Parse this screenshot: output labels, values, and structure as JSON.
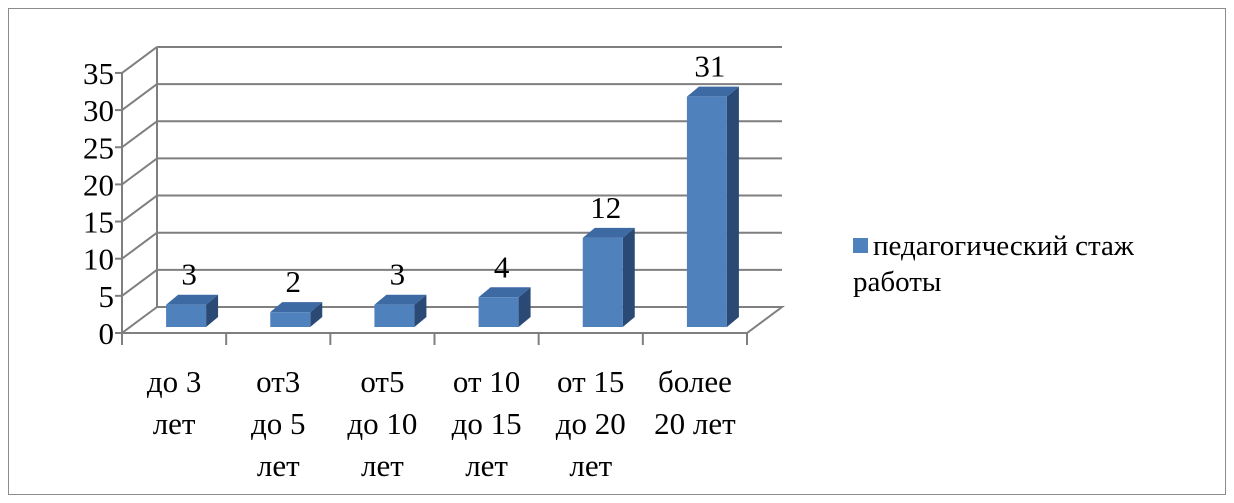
{
  "chart_data": {
    "type": "bar",
    "categories": [
      [
        "до 3",
        "лет"
      ],
      [
        "от3",
        "до 5",
        "лет"
      ],
      [
        "от5",
        "до 10",
        "лет"
      ],
      [
        "от 10",
        "до 15",
        "лет"
      ],
      [
        "от 15",
        "до 20",
        "лет"
      ],
      [
        "более",
        "20 лет"
      ]
    ],
    "series": [
      {
        "name": "педагогический стаж работы",
        "values": [
          3,
          2,
          3,
          4,
          12,
          31
        ]
      }
    ],
    "ylim": [
      0,
      35
    ],
    "yticks": [
      0,
      5,
      10,
      15,
      20,
      25,
      30,
      35
    ],
    "grid": true,
    "legend": "right",
    "data_labels": true,
    "style": "3d-column",
    "colors": {
      "bar": "#4f81bd",
      "bar_side": "#2a4a75",
      "bar_top": "#3d6aa3",
      "grid": "#7f7f7f"
    }
  },
  "legend": {
    "lines": [
      "педагогический стаж",
      "работы"
    ]
  }
}
